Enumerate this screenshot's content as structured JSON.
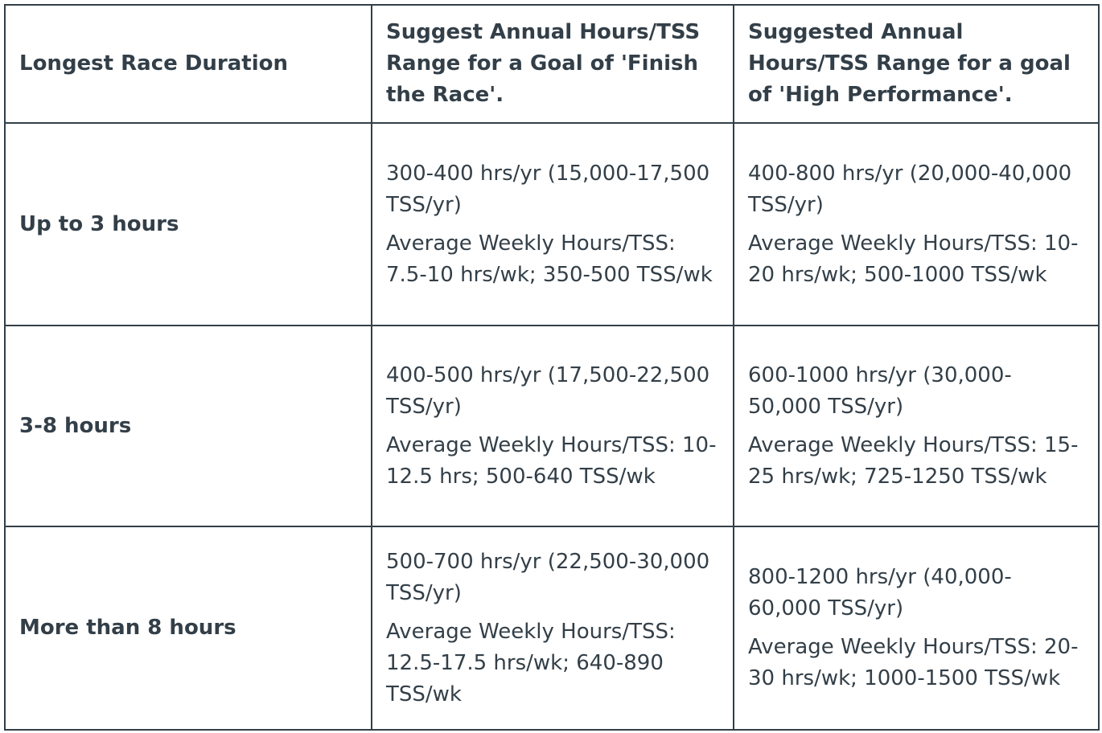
{
  "colors": {
    "text": "#333f48",
    "border": "#333f48",
    "background": "#ffffff"
  },
  "table": {
    "headers": {
      "duration": "Longest Race Duration",
      "finish_goal": "Suggest Annual Hours/TSS Range for a Goal of 'Finish the Race'.",
      "high_performance_goal": "Suggested Annual Hours/TSS Range for a goal of 'High Performance'."
    },
    "rows": [
      {
        "duration": "Up to 3 hours",
        "finish_annual": "300-400 hrs/yr (15,000-17,500 TSS/yr)",
        "finish_weekly": "Average Weekly Hours/TSS: 7.5-10 hrs/wk; 350-500 TSS/wk",
        "high_annual": "400-800 hrs/yr (20,000-40,000 TSS/yr)",
        "high_weekly": "Average Weekly Hours/TSS: 10-20 hrs/wk; 500-1000 TSS/wk"
      },
      {
        "duration": "3-8 hours",
        "finish_annual": "400-500 hrs/yr (17,500-22,500 TSS/yr)",
        "finish_weekly": "Average Weekly Hours/TSS: 10-12.5 hrs; 500-640 TSS/wk",
        "high_annual": "600-1000 hrs/yr (30,000-50,000 TSS/yr)",
        "high_weekly": "Average Weekly Hours/TSS: 15-25 hrs/wk; 725-1250 TSS/wk"
      },
      {
        "duration": "More than 8 hours",
        "finish_annual": "500-700 hrs/yr (22,500-30,000 TSS/yr)",
        "finish_weekly": "Average Weekly Hours/TSS: 12.5-17.5 hrs/wk; 640-890 TSS/wk",
        "high_annual": "800-1200 hrs/yr (40,000-60,000 TSS/yr)",
        "high_weekly": "Average Weekly Hours/TSS: 20-30 hrs/wk; 1000-1500 TSS/wk"
      }
    ]
  }
}
